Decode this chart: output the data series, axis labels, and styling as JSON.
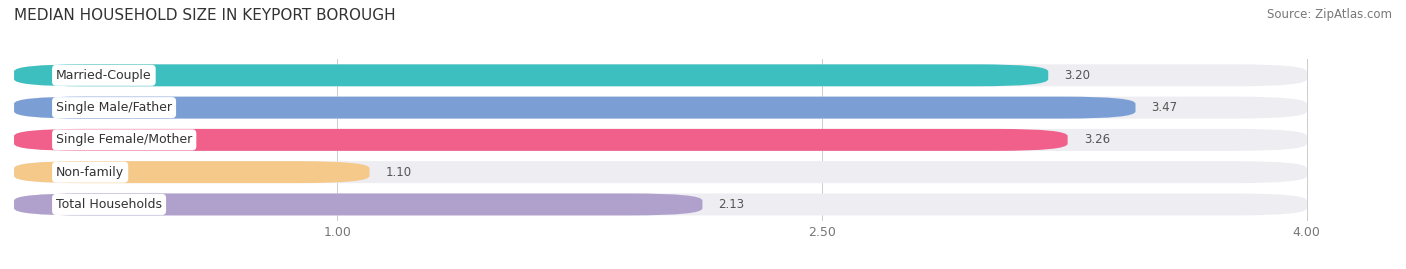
{
  "title": "MEDIAN HOUSEHOLD SIZE IN KEYPORT BOROUGH",
  "source": "Source: ZipAtlas.com",
  "categories": [
    "Married-Couple",
    "Single Male/Father",
    "Single Female/Mother",
    "Non-family",
    "Total Households"
  ],
  "values": [
    3.2,
    3.47,
    3.26,
    1.1,
    2.13
  ],
  "bar_colors": [
    "#3dbfbf",
    "#7b9fd4",
    "#f0608a",
    "#f5c98a",
    "#b0a0cc"
  ],
  "xlim_left": 0,
  "xlim_right": 4.22,
  "data_max": 4.0,
  "xticks": [
    1.0,
    2.5,
    4.0
  ],
  "title_fontsize": 11,
  "source_fontsize": 8.5,
  "bar_label_fontsize": 8.5,
  "cat_label_fontsize": 9,
  "background_color": "#ffffff",
  "bar_bg_color": "#ededf2",
  "bar_height": 0.68,
  "bar_gap": 0.18
}
